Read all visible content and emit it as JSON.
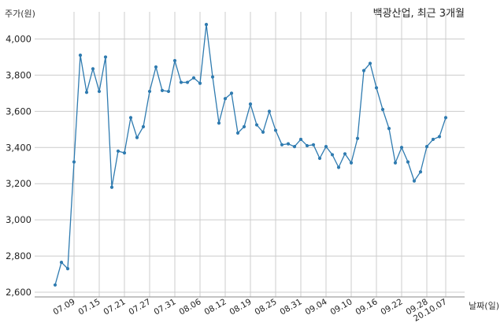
{
  "chart_data": {
    "type": "line",
    "title": "백광산업, 최근 3개월",
    "ylabel": "주가(원)",
    "xlabel": "날짜(일)",
    "ylim": [
      2600,
      4150
    ],
    "yticks": [
      2600,
      2800,
      3000,
      3200,
      3400,
      3600,
      3800,
      4000
    ],
    "ytick_labels": [
      "2,600",
      "2,800",
      "3,000",
      "3,200",
      "3,400",
      "3,600",
      "3,800",
      "4,000"
    ],
    "grid": true,
    "line_color": "#2f7bb0",
    "xtick_labels": [
      {
        "label": "07.09",
        "index": 3
      },
      {
        "label": "07.15",
        "index": 7
      },
      {
        "label": "07.21",
        "index": 11
      },
      {
        "label": "07.27",
        "index": 15
      },
      {
        "label": "07.31",
        "index": 19
      },
      {
        "label": "08.06",
        "index": 23
      },
      {
        "label": "08.12",
        "index": 27
      },
      {
        "label": "08.19",
        "index": 31
      },
      {
        "label": "08.25",
        "index": 35
      },
      {
        "label": "08.31",
        "index": 39
      },
      {
        "label": "09.04",
        "index": 43
      },
      {
        "label": "09.10",
        "index": 47
      },
      {
        "label": "09.16",
        "index": 51
      },
      {
        "label": "09.22",
        "index": 55
      },
      {
        "label": "09.28",
        "index": 59
      },
      {
        "label": "20.10.07",
        "index": 62
      }
    ],
    "values": [
      2640,
      2765,
      2730,
      3320,
      3910,
      3705,
      3835,
      3710,
      3900,
      3180,
      3380,
      3370,
      3565,
      3455,
      3515,
      3710,
      3845,
      3715,
      3710,
      3880,
      3760,
      3760,
      3785,
      3755,
      4080,
      3790,
      3535,
      3670,
      3700,
      3480,
      3515,
      3640,
      3525,
      3485,
      3600,
      3495,
      3415,
      3420,
      3405,
      3445,
      3410,
      3415,
      3340,
      3405,
      3360,
      3290,
      3365,
      3315,
      3450,
      3825,
      3865,
      3730,
      3610,
      3505,
      3315,
      3400,
      3320,
      3215,
      3265,
      3405,
      3445,
      3460,
      3565
    ]
  }
}
